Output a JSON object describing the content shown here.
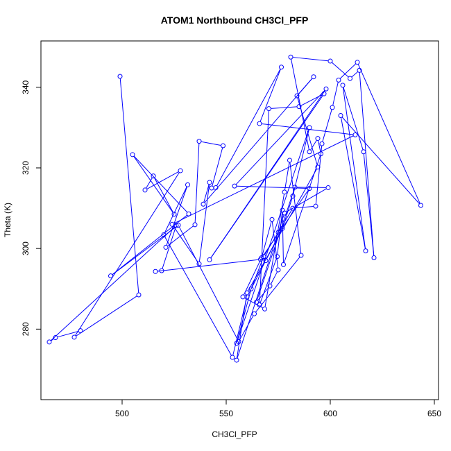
{
  "chart_data": {
    "type": "line",
    "title": "ATOM1 Northbound CH3Cl_PFP",
    "xlabel": "CH3Cl_PFP",
    "ylabel": "Theta (K)",
    "xlim": [
      461,
      652
    ],
    "ylim": [
      262.5,
      351.5
    ],
    "xticks": [
      500,
      550,
      600,
      650
    ],
    "yticks": [
      280,
      300,
      320,
      340
    ],
    "grid": false,
    "legend": "none",
    "markers": "open-circle",
    "series": [
      {
        "color": "#0000ff",
        "points": [
          [
            499,
            342.7
          ],
          [
            508,
            288.5
          ],
          [
            477,
            278
          ],
          [
            528,
            319.3
          ],
          [
            511,
            314.5
          ],
          [
            515,
            318
          ],
          [
            525,
            308.5
          ],
          [
            505,
            323.3
          ],
          [
            532,
            308.6
          ],
          [
            494.5,
            293.2
          ],
          [
            527,
            305.8
          ],
          [
            556,
            276.9
          ],
          [
            563.5,
            283.8
          ],
          [
            586,
            298.3
          ],
          [
            580.5,
            321.9
          ],
          [
            578,
            314
          ],
          [
            568.5,
            285
          ],
          [
            558,
            288
          ],
          [
            567,
            297.7
          ],
          [
            572,
            307.2
          ],
          [
            575,
            294.7
          ],
          [
            571,
            290.7
          ],
          [
            564.5,
            286.7
          ],
          [
            583,
            315.2
          ],
          [
            599,
            315.1
          ],
          [
            578,
            308.8
          ],
          [
            555,
            272.3
          ],
          [
            560,
            289
          ],
          [
            594,
            320.2
          ],
          [
            584,
            337.9
          ],
          [
            592,
            342.6
          ],
          [
            539,
            311
          ],
          [
            542,
            316.4
          ],
          [
            537,
            296.2
          ],
          [
            524,
            306
          ],
          [
            612,
            328.2
          ],
          [
            566,
            331
          ],
          [
            576.5,
            345
          ],
          [
            545,
            315.1
          ],
          [
            543,
            315
          ],
          [
            548.5,
            325.5
          ],
          [
            537,
            326.6
          ],
          [
            535,
            305.9
          ],
          [
            521,
            300.3
          ],
          [
            531.5,
            315.8
          ],
          [
            520,
            303.4
          ],
          [
            553,
            273
          ],
          [
            560,
            288
          ],
          [
            569,
            297
          ],
          [
            577,
            305
          ],
          [
            582,
            313
          ],
          [
            590,
            330
          ],
          [
            555,
            276.5
          ],
          [
            562,
            290
          ],
          [
            568,
            298
          ],
          [
            575,
            304
          ],
          [
            582,
            310
          ],
          [
            593,
            310.5
          ],
          [
            596,
            326
          ],
          [
            601,
            335
          ],
          [
            604,
            341.8
          ],
          [
            613,
            346.2
          ],
          [
            643.5,
            310.7
          ],
          [
            605,
            333
          ],
          [
            617,
            299.4
          ],
          [
            606,
            340.5
          ],
          [
            616,
            324
          ],
          [
            621,
            297.7
          ],
          [
            614,
            344.2
          ],
          [
            609.5,
            342.2
          ],
          [
            600,
            346.5
          ],
          [
            581,
            347.5
          ],
          [
            590,
            324
          ],
          [
            594,
            327.3
          ],
          [
            595.5,
            323.5
          ],
          [
            577.5,
            296
          ],
          [
            577,
            309.5
          ],
          [
            574.5,
            298
          ],
          [
            566,
            286
          ],
          [
            570.5,
            334.7
          ],
          [
            585,
            335.2
          ],
          [
            597,
            338.4
          ],
          [
            542,
            297.2
          ],
          [
            598,
            339.6
          ],
          [
            554,
            315.5
          ],
          [
            590,
            314.9
          ],
          [
            566.5,
            297.3
          ],
          [
            516,
            294.3
          ],
          [
            519,
            294.5
          ],
          [
            526,
            305.7
          ],
          [
            465,
            276.8
          ],
          [
            468,
            277.9
          ],
          [
            480,
            279.6
          ]
        ]
      }
    ]
  }
}
